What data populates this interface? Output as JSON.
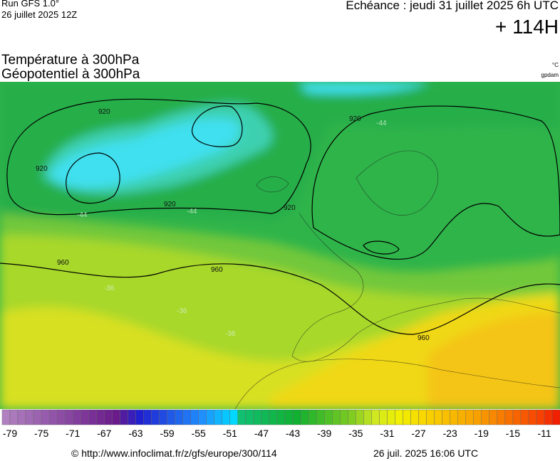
{
  "header": {
    "run": "Run GFS 1.0°",
    "run_date": "26 juillet 2025 12Z",
    "valid": "Echéance : jeudi 31 juillet 2025 6h UTC",
    "lead": "+ 114H"
  },
  "title": {
    "line1": "Température à 300hPa",
    "line2": "Géopotentiel à 300hPa"
  },
  "units": {
    "temperature": "°C",
    "geopotential": "gpdam"
  },
  "map": {
    "contour_labels": [
      "920",
      "920",
      "920",
      "920",
      "920",
      "960",
      "960",
      "960"
    ],
    "isotherm_labels": [
      "-44",
      "-44",
      "-44",
      "-36",
      "-36",
      "-36"
    ]
  },
  "colorbar": {
    "labels": [
      -79,
      -75,
      -71,
      -67,
      -63,
      -59,
      -55,
      -51,
      -47,
      -43,
      -39,
      -35,
      -31,
      -27,
      -23,
      -19,
      -15,
      -11
    ]
  },
  "footer": {
    "url": "© http://www.infoclimat.fr/z/gfs/europe/300/114",
    "timestamp": "26 juil. 2025 16:06 UTC"
  }
}
